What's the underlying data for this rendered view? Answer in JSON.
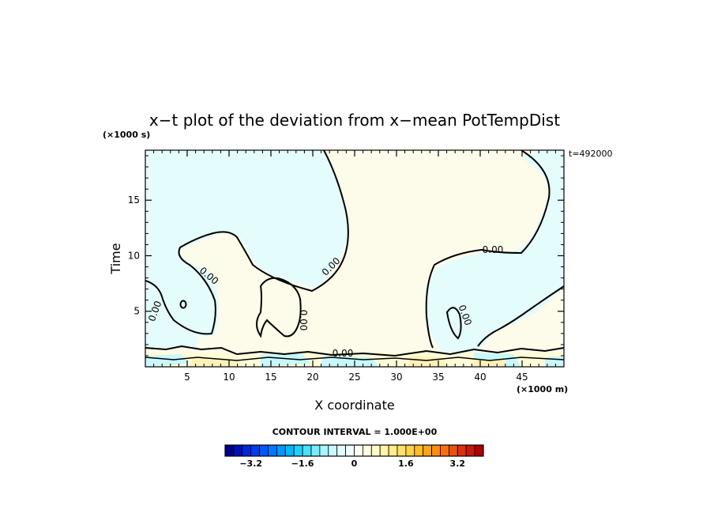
{
  "chart_data": {
    "type": "heatmap",
    "title": "x−t plot of the deviation from x−mean PotTempDist",
    "xlabel": "X coordinate",
    "ylabel": "Time",
    "x_unit_label": "(×1000 m)",
    "y_unit_label": "(×1000 s)",
    "time_stamp": "t=492000",
    "xlim": [
      0,
      50
    ],
    "ylim": [
      0,
      19.5
    ],
    "x_ticks": [
      5,
      10,
      15,
      20,
      25,
      30,
      35,
      40,
      45
    ],
    "y_ticks": [
      5,
      10,
      15
    ],
    "contour_label": "0.00",
    "contour_interval_text": "CONTOUR INTERVAL = 1.000E+00",
    "colorbar": {
      "min": -4.0,
      "max": 4.0,
      "ticks": [
        -3.2,
        -1.6,
        0,
        1.6,
        3.2
      ],
      "tick_labels": [
        "−3.2",
        "−1.6",
        "0",
        "1.6",
        "3.2"
      ],
      "colors": [
        "#00008c",
        "#0010b4",
        "#0028d8",
        "#003cf0",
        "#0058ff",
        "#0078ff",
        "#0098ff",
        "#00b8ff",
        "#20d0ff",
        "#48e0ff",
        "#78ecff",
        "#a8f4ff",
        "#c8faff",
        "#e0feff",
        "#f0ffff",
        "#fffff0",
        "#fffde0",
        "#fffac8",
        "#fff4a8",
        "#ffec88",
        "#ffe068",
        "#ffd048",
        "#ffbc28",
        "#ffa418",
        "#ff8c10",
        "#f87010",
        "#ec5010",
        "#dc3010",
        "#c81808",
        "#b00000"
      ]
    },
    "regions": [
      {
        "name": "upper-left-negative",
        "value": -0.3
      },
      {
        "name": "central-positive",
        "value": 0.3
      },
      {
        "name": "upper-right-negative",
        "value": -0.3
      },
      {
        "name": "bottom-band",
        "value": 0.8
      }
    ]
  }
}
